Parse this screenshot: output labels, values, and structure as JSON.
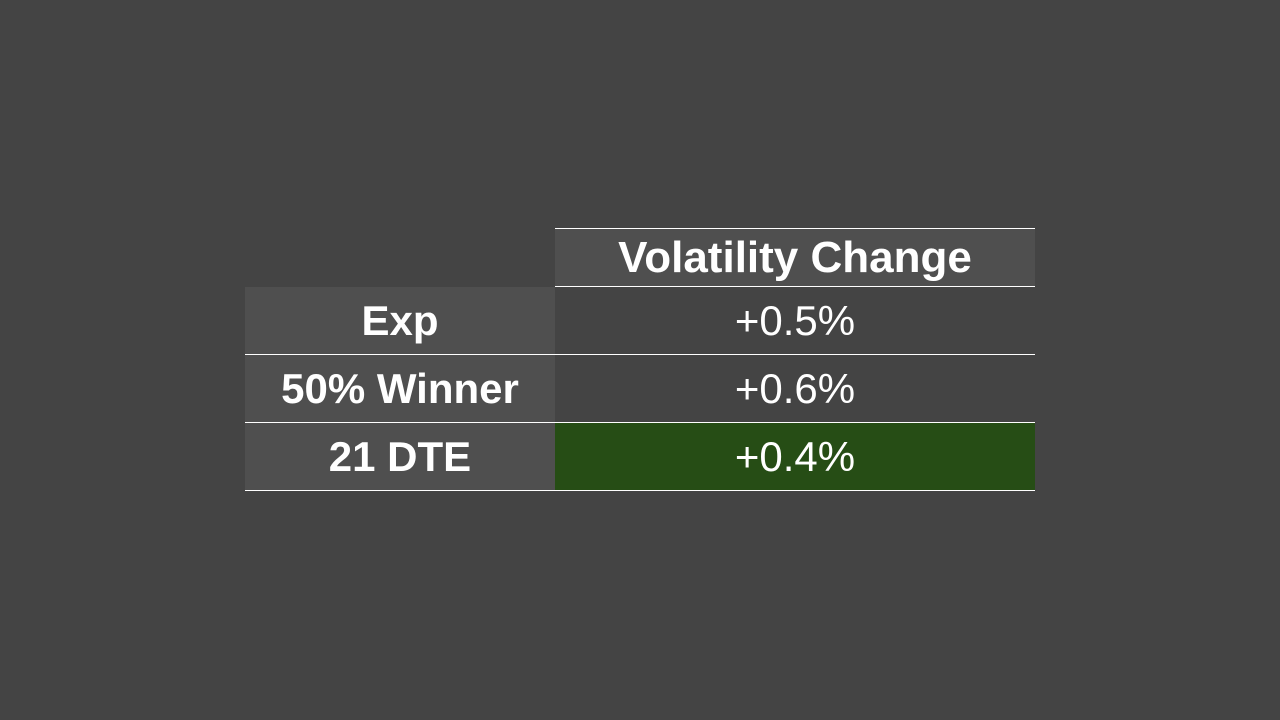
{
  "table": {
    "header": "Volatility Change",
    "rows": [
      {
        "label": "Exp",
        "value": "+0.5%",
        "highlight": false
      },
      {
        "label": "50% Winner",
        "value": "+0.6%",
        "highlight": false
      },
      {
        "label": "21 DTE",
        "value": "+0.4%",
        "highlight": true
      }
    ]
  },
  "colors": {
    "background": "#444444",
    "label_cell": "#4f4f4f",
    "highlight_cell": "#264d15",
    "text": "#ffffff"
  }
}
